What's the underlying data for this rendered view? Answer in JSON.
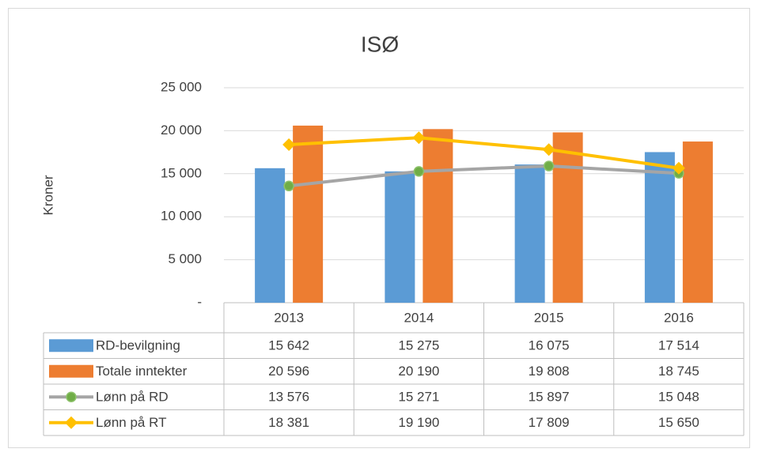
{
  "chart_data": {
    "type": "bar_line_table",
    "title": "ISØ",
    "y_label": "Kroner",
    "categories": [
      "2013",
      "2014",
      "2015",
      "2016"
    ],
    "ylim": [
      0,
      25000
    ],
    "yticks": [
      {
        "value": 0,
        "label": "-"
      },
      {
        "value": 5000,
        "label": "5 000"
      },
      {
        "value": 10000,
        "label": "10 000"
      },
      {
        "value": 15000,
        "label": "15 000"
      },
      {
        "value": 20000,
        "label": "20 000"
      },
      {
        "value": 25000,
        "label": "25 000"
      }
    ],
    "grid": true,
    "series": [
      {
        "name": "RD-bevilgning",
        "kind": "bar",
        "color": "#5b9bd5",
        "values": [
          15642,
          15275,
          16075,
          17514
        ],
        "value_labels": [
          "15 642",
          "15 275",
          "16 075",
          "17 514"
        ]
      },
      {
        "name": "Totale inntekter",
        "kind": "bar",
        "color": "#ed7d31",
        "values": [
          20596,
          20190,
          19808,
          18745
        ],
        "value_labels": [
          "20 596",
          "20 190",
          "19 808",
          "18 745"
        ]
      },
      {
        "name": "Lønn på RD",
        "kind": "line",
        "color": "#a5a5a5",
        "marker": "circle",
        "marker_color": "#70ad47",
        "values": [
          13576,
          15271,
          15897,
          15048
        ],
        "value_labels": [
          "13 576",
          "15 271",
          "15 897",
          "15 048"
        ]
      },
      {
        "name": "Lønn på RT",
        "kind": "line",
        "color": "#ffc000",
        "marker": "diamond",
        "marker_color": "#ffc000",
        "values": [
          18381,
          19190,
          17809,
          15650
        ],
        "value_labels": [
          "18 381",
          "19 190",
          "17 809",
          "15 650"
        ]
      }
    ]
  }
}
